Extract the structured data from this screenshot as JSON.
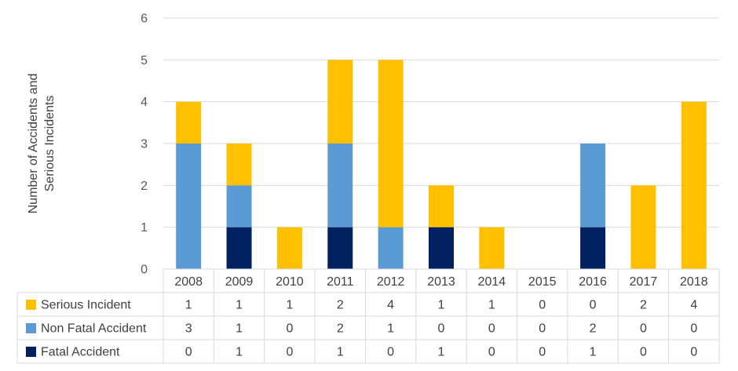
{
  "chart_data": {
    "type": "bar",
    "stacked": true,
    "title": "",
    "xlabel": "",
    "ylabel": "Number of Accidents and Serious Incidents",
    "ylabel_lines": [
      "Number of Accidents and",
      "Serious Incidents"
    ],
    "ylim": [
      0,
      6
    ],
    "yticks": [
      0,
      1,
      2,
      3,
      4,
      5,
      6
    ],
    "grid": true,
    "legend_placement": "data table",
    "categories": [
      "2008",
      "2009",
      "2010",
      "2011",
      "2012",
      "2013",
      "2014",
      "2015",
      "2016",
      "2017",
      "2018"
    ],
    "series": [
      {
        "name": "Fatal Accident",
        "color": "#002060",
        "values": [
          0,
          1,
          0,
          1,
          0,
          1,
          0,
          0,
          1,
          0,
          0
        ]
      },
      {
        "name": "Non Fatal Accident",
        "color": "#5B9BD5",
        "values": [
          3,
          1,
          0,
          2,
          1,
          0,
          0,
          0,
          2,
          0,
          0
        ]
      },
      {
        "name": "Serious Incident",
        "color": "#FFC000",
        "values": [
          1,
          1,
          1,
          2,
          4,
          1,
          1,
          0,
          0,
          2,
          4
        ]
      }
    ],
    "table_row_order": [
      "Serious Incident",
      "Non Fatal Accident",
      "Fatal Accident"
    ]
  }
}
